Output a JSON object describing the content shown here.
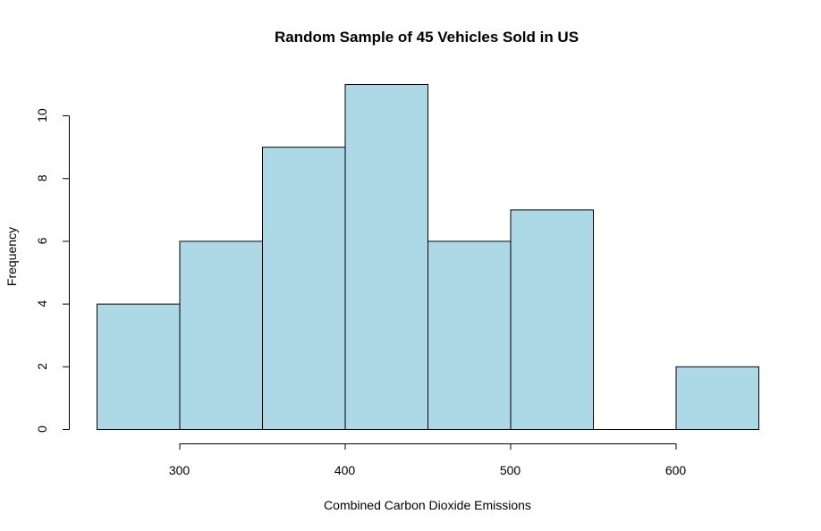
{
  "chart_data": {
    "type": "bar",
    "title": "Random Sample of 45 Vehicles Sold in US",
    "xlabel": "Combined Carbon Dioxide Emissions",
    "ylabel": "Frequency",
    "bins": [
      {
        "start": 250,
        "end": 300,
        "count": 4
      },
      {
        "start": 300,
        "end": 350,
        "count": 6
      },
      {
        "start": 350,
        "end": 400,
        "count": 9
      },
      {
        "start": 400,
        "end": 450,
        "count": 11
      },
      {
        "start": 450,
        "end": 500,
        "count": 6
      },
      {
        "start": 500,
        "end": 550,
        "count": 7
      },
      {
        "start": 550,
        "end": 600,
        "count": 0
      },
      {
        "start": 600,
        "end": 650,
        "count": 2
      }
    ],
    "xlim": [
      250,
      650
    ],
    "ylim": [
      0,
      11
    ],
    "x_ticks": [
      300,
      400,
      500,
      600
    ],
    "y_ticks": [
      0,
      2,
      4,
      6,
      8,
      10
    ],
    "bar_color": "#add8e6",
    "grid": false
  }
}
